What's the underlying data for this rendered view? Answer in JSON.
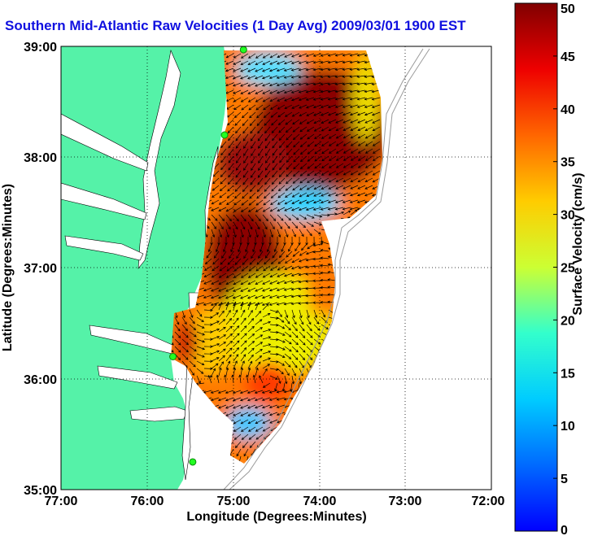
{
  "title": "Southern Mid-Atlantic Raw Velocities (1 Day Avg) 2009/03/01 1900 EST",
  "map": {
    "x_axis": {
      "label": "Longitude (Degrees:Minutes)",
      "ticks": [
        "77:00",
        "76:00",
        "75:00",
        "74:00",
        "73:00",
        "72:00"
      ],
      "range": [
        -77,
        -72
      ]
    },
    "y_axis": {
      "label": "Latitude (Degrees:Minutes)",
      "ticks": [
        "39:00",
        "38:00",
        "37:00",
        "36:00",
        "35:00"
      ],
      "range": [
        35,
        39
      ]
    },
    "grid": "dotted",
    "land_color": "#55f2a8",
    "stations": [
      {
        "lon": -74.88,
        "lat": 38.97
      },
      {
        "lon": -75.1,
        "lat": 38.2
      },
      {
        "lon": -75.7,
        "lat": 36.2
      },
      {
        "lon": -75.47,
        "lat": 35.25
      }
    ]
  },
  "colorbar": {
    "label": "Surface Velocity (cm/s)",
    "ticks": [
      "0",
      "5",
      "10",
      "15",
      "20",
      "25",
      "30",
      "35",
      "40",
      "45",
      "50"
    ],
    "range": [
      0,
      50
    ],
    "colormap": "jet"
  }
}
